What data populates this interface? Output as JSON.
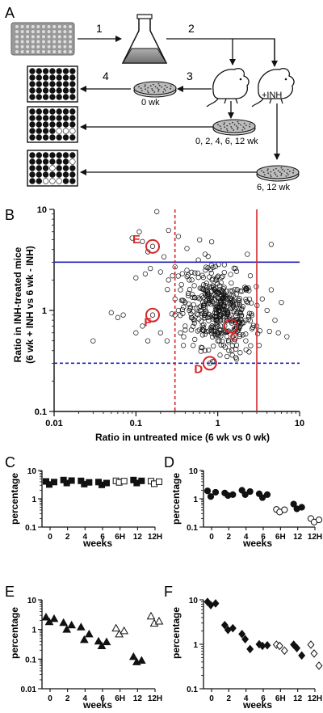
{
  "panel_a": {
    "label": "A",
    "step_labels": [
      "1",
      "2",
      "3",
      "4"
    ],
    "plate_labels": [
      "0 wk",
      "0, 2, 4, 6, 12 wk",
      "6, 12 wk"
    ],
    "inh_label": "+INH",
    "colors": {
      "well_filled": "#111111",
      "well_empty": "#ffffff",
      "source_plate": "#9a9a9a"
    },
    "plates": [
      {
        "row": 1,
        "missing_wells": []
      },
      {
        "row": 2,
        "missing_wells": [
          [
            3,
            4
          ],
          [
            3,
            5
          ],
          [
            3,
            6
          ]
        ]
      },
      {
        "row": 3,
        "missing_wells": [
          [
            1,
            6
          ],
          [
            2,
            3
          ],
          [
            4,
            2
          ],
          [
            4,
            3
          ],
          [
            4,
            4
          ]
        ]
      }
    ]
  },
  "chart_data": [
    {
      "id": "B",
      "panel_label": "B",
      "type": "scatter",
      "xlabel": "Ratio in untreated mice (6 wk vs 0 wk)",
      "ylabel_lines": [
        "Ratio in INH-treated mice",
        "(6 wk + INH vs 6 wk - INH)"
      ],
      "x_scale": "log",
      "y_scale": "log",
      "xlim": [
        0.01,
        10
      ],
      "ylim": [
        0.1,
        10
      ],
      "x_ticks": [
        "0.01",
        "0.1",
        "1",
        "10"
      ],
      "y_ticks": [
        "0.1",
        "1",
        "10"
      ],
      "thresholds": {
        "horizontal": [
          {
            "y": 3,
            "style": "solid",
            "color": "#1f22b8"
          },
          {
            "y": 0.3,
            "style": "dashed",
            "color": "#1f22b8"
          }
        ],
        "vertical": [
          {
            "x": 0.3,
            "style": "dashed",
            "color": "#d4272b"
          },
          {
            "x": 3,
            "style": "solid",
            "color": "#d4272b"
          }
        ]
      },
      "highlighted": [
        {
          "label": "E",
          "x": 0.16,
          "y": 4.3
        },
        {
          "label": "F",
          "x": 0.16,
          "y": 0.9
        },
        {
          "label": "C",
          "x": 1.45,
          "y": 0.7
        },
        {
          "label": "D",
          "x": 0.8,
          "y": 0.3
        }
      ],
      "highlight_color": "#d4272b",
      "points": [
        [
          0.16,
          4.3
        ],
        [
          0.16,
          0.9
        ],
        [
          0.8,
          0.3
        ],
        [
          0.09,
          5.2
        ],
        [
          0.12,
          4.8
        ],
        [
          0.18,
          9.5
        ],
        [
          0.11,
          6.0
        ],
        [
          0.14,
          3.8
        ],
        [
          0.25,
          6.2
        ],
        [
          0.22,
          3.4
        ],
        [
          0.33,
          5.4
        ],
        [
          0.42,
          4.1
        ],
        [
          0.6,
          5.0
        ],
        [
          0.7,
          3.6
        ],
        [
          2.3,
          3.6
        ],
        [
          4.5,
          4.5
        ],
        [
          0.13,
          2.3
        ],
        [
          0.2,
          2.4
        ],
        [
          0.1,
          2.1
        ],
        [
          0.15,
          2.6
        ],
        [
          0.3,
          2.7
        ],
        [
          0.25,
          2.0
        ],
        [
          0.28,
          2.2
        ],
        [
          0.45,
          2.0
        ],
        [
          0.03,
          0.5
        ],
        [
          0.05,
          0.95
        ],
        [
          0.06,
          0.85
        ],
        [
          0.07,
          0.9
        ],
        [
          0.1,
          0.6
        ],
        [
          0.12,
          0.7
        ],
        [
          0.14,
          0.5
        ],
        [
          0.2,
          0.6
        ],
        [
          0.24,
          0.5
        ],
        [
          0.3,
          0.9
        ],
        [
          0.35,
          0.6
        ],
        [
          0.4,
          0.7
        ],
        [
          0.38,
          0.45
        ],
        [
          0.5,
          0.45
        ],
        [
          0.7,
          0.4
        ],
        [
          1.0,
          0.5
        ],
        [
          1.3,
          0.35
        ],
        [
          1.7,
          0.33
        ],
        [
          2.2,
          0.5
        ],
        [
          3.2,
          0.45
        ],
        [
          5.5,
          0.6
        ],
        [
          7.0,
          0.55
        ],
        [
          4.0,
          1.0
        ],
        [
          5.0,
          0.8
        ],
        [
          6.0,
          1.2
        ],
        [
          4.5,
          1.6
        ],
        [
          3.5,
          1.3
        ],
        [
          3.0,
          0.7
        ],
        [
          2.5,
          2.2
        ],
        [
          0.3,
          1.3
        ],
        [
          0.35,
          1.6
        ],
        [
          0.4,
          1.2
        ],
        [
          0.45,
          1.0
        ],
        [
          0.33,
          1.0
        ],
        [
          0.36,
          1.8
        ],
        [
          0.42,
          2.5
        ]
      ],
      "cluster": {
        "center_x": 1.05,
        "center_y": 1.0,
        "spread_x_log10": 0.22,
        "spread_y_log10": 0.2,
        "count": 430
      }
    },
    {
      "id": "C",
      "panel_label": "C",
      "type": "scatter",
      "ylabel": "percentage",
      "xlabel": "weeks",
      "y_scale": "log",
      "ylim": [
        0.1,
        10
      ],
      "y_ticks": [
        "0.1",
        "1",
        "10"
      ],
      "categories": [
        "0",
        "2",
        "4",
        "6",
        "6H",
        "12",
        "12H"
      ],
      "marker": [
        "square",
        "square",
        "square",
        "square",
        "square-open",
        "square",
        "square-open"
      ],
      "values": [
        [
          4.1,
          3.2,
          3.9
        ],
        [
          4.6,
          3.6,
          4.4
        ],
        [
          4.3,
          3.3,
          3.8
        ],
        [
          3.9,
          3.1,
          3.6
        ],
        [
          4.3,
          3.8,
          4.2
        ],
        [
          4.6,
          3.6,
          4.3
        ],
        [
          4.2,
          3.4,
          4.0
        ]
      ]
    },
    {
      "id": "D",
      "panel_label": "D",
      "type": "scatter",
      "ylabel": "percentage",
      "xlabel": "weeks",
      "y_scale": "log",
      "ylim": [
        0.1,
        10
      ],
      "y_ticks": [
        "0.1",
        "1",
        "10"
      ],
      "categories": [
        "0",
        "2",
        "4",
        "6",
        "6H",
        "12",
        "12H"
      ],
      "marker": [
        "circle",
        "circle",
        "circle",
        "circle",
        "circle-open",
        "circle",
        "circle-open"
      ],
      "values": [
        [
          1.9,
          1.2,
          1.7
        ],
        [
          1.6,
          1.3,
          1.4
        ],
        [
          2.0,
          1.4,
          1.8
        ],
        [
          1.5,
          1.1,
          1.4
        ],
        [
          0.42,
          0.34,
          0.41
        ],
        [
          0.65,
          0.44,
          0.5
        ],
        [
          0.2,
          0.15,
          0.18
        ]
      ]
    },
    {
      "id": "E",
      "panel_label": "E",
      "type": "scatter",
      "ylabel": "percentage",
      "xlabel": "weeks",
      "y_scale": "log",
      "ylim": [
        0.01,
        10
      ],
      "y_ticks": [
        "0.01",
        "0.1",
        "1",
        "10"
      ],
      "categories": [
        "0",
        "2",
        "4",
        "6",
        "6H",
        "12",
        "12H"
      ],
      "marker": [
        "triangle",
        "triangle",
        "triangle",
        "triangle",
        "triangle-open",
        "triangle",
        "triangle-open"
      ],
      "values": [
        [
          2.6,
          1.8,
          2.3
        ],
        [
          1.7,
          1.0,
          1.4
        ],
        [
          1.2,
          0.45,
          0.7
        ],
        [
          0.4,
          0.28,
          0.38
        ],
        [
          1.1,
          0.7,
          0.9
        ],
        [
          0.12,
          0.08,
          0.09
        ],
        [
          2.8,
          1.6,
          1.9
        ]
      ]
    },
    {
      "id": "F",
      "panel_label": "F",
      "type": "scatter",
      "ylabel": "percentage",
      "xlabel": "weeks",
      "y_scale": "log",
      "ylim": [
        0.1,
        10
      ],
      "y_ticks": [
        "0.1",
        "1",
        "10"
      ],
      "categories": [
        "0",
        "2",
        "4",
        "6",
        "6H",
        "12",
        "12H"
      ],
      "marker": [
        "diamond",
        "diamond",
        "diamond",
        "diamond",
        "diamond-open",
        "diamond",
        "diamond-open"
      ],
      "values": [
        [
          9.0,
          7.6,
          8.3
        ],
        [
          2.7,
          2.1,
          2.3
        ],
        [
          1.7,
          1.3,
          0.78
        ],
        [
          1.0,
          0.92,
          0.95
        ],
        [
          0.98,
          0.92,
          0.72
        ],
        [
          0.98,
          0.82,
          0.56
        ],
        [
          0.98,
          0.62,
          0.33
        ]
      ]
    }
  ]
}
